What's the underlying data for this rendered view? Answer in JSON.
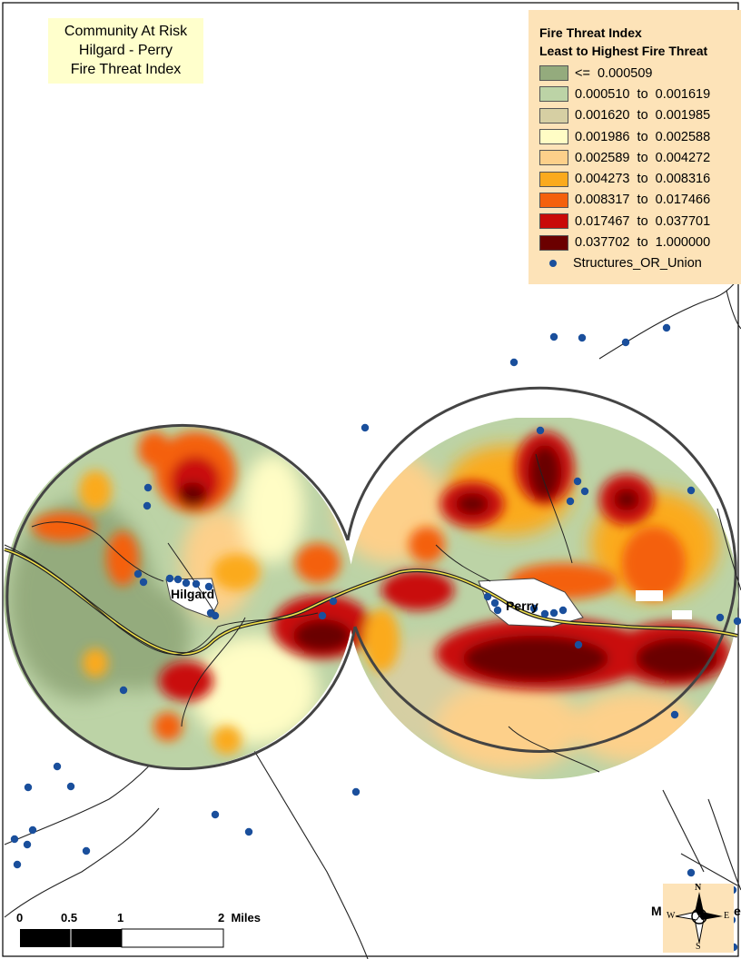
{
  "title": {
    "line1": "Community At Risk",
    "line2": "Hilgard - Perry",
    "line3": "Fire Threat Index"
  },
  "legend": {
    "heading1": "Fire Threat Index",
    "heading2": "Least to Highest Fire Threat",
    "classes": [
      {
        "label": "<=  0.000509",
        "color": "#94ab7d"
      },
      {
        "label": "0.000510  to  0.001619",
        "color": "#bcd3a6"
      },
      {
        "label": "0.001620  to  0.001985",
        "color": "#d6cfa3"
      },
      {
        "label": "0.001986  to  0.002588",
        "color": "#fffdc5"
      },
      {
        "label": "0.002589  to  0.004272",
        "color": "#fdd08a"
      },
      {
        "label": "0.004273  to  0.008316",
        "color": "#fbaa1d"
      },
      {
        "label": "0.008317  to  0.017466",
        "color": "#f4600c"
      },
      {
        "label": "0.017467  to  0.037701",
        "color": "#c90a08"
      },
      {
        "label": "0.037702  to  1.000000",
        "color": "#6b0000"
      }
    ],
    "points_label": "Structures_OR_Union",
    "points_color": "#1a4f9c"
  },
  "places": {
    "hilgard": "Hilgard",
    "perry": "Perry"
  },
  "scale_bar": {
    "labels": [
      "0",
      "0.5",
      "1",
      "2  Miles"
    ]
  },
  "north_arrow": {
    "n": "N",
    "s": "S",
    "e": "E",
    "w": "W"
  },
  "edge_labels": {
    "left_m": "M",
    "right_e": "e"
  }
}
